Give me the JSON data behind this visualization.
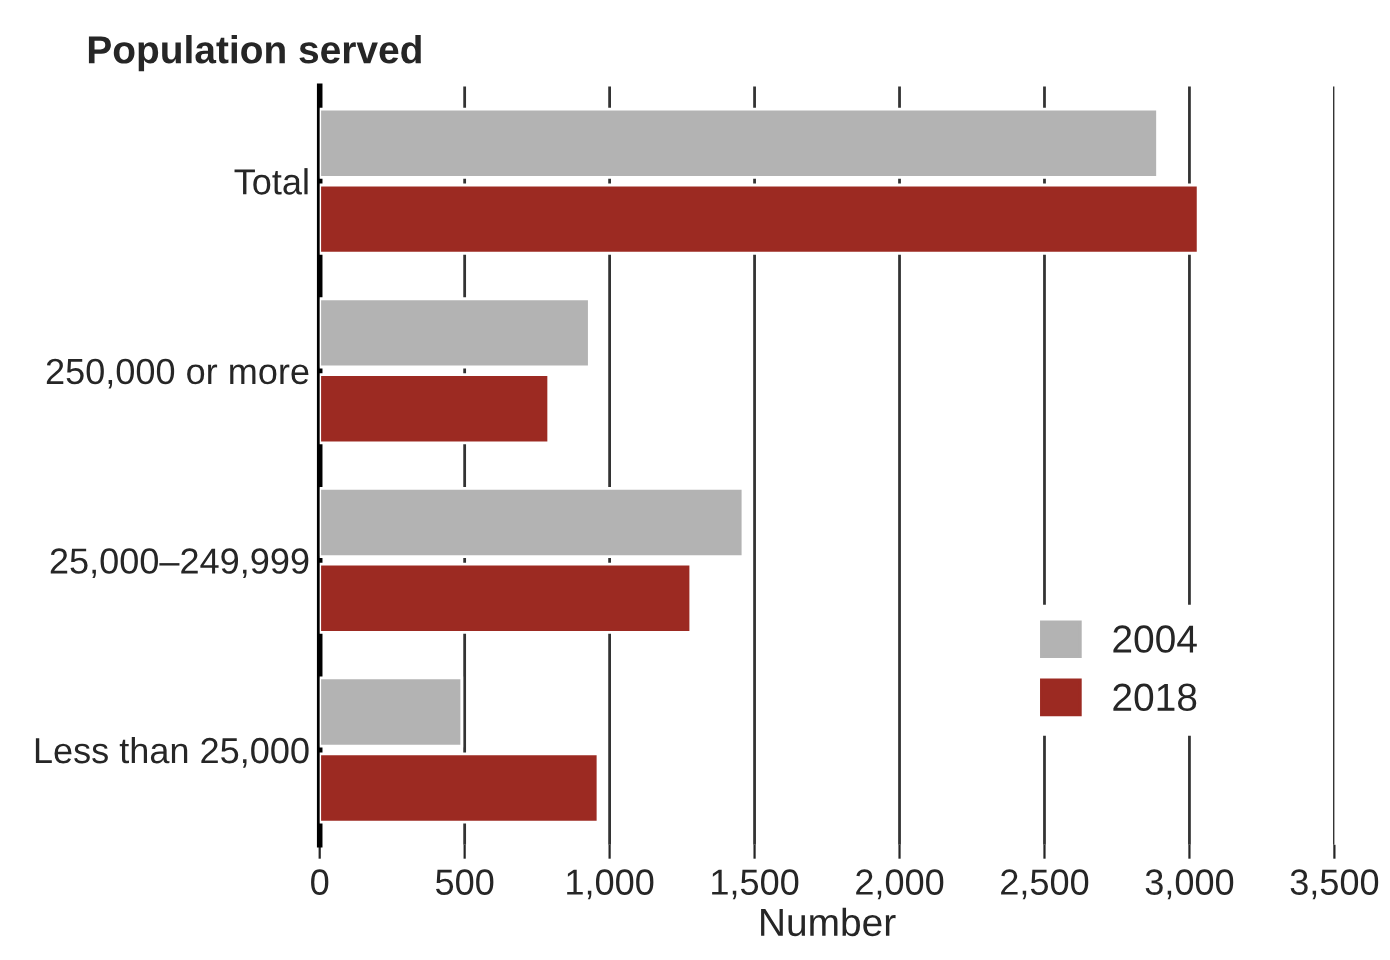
{
  "chart_data": {
    "type": "bar",
    "orientation": "horizontal",
    "ylabel": "Population served",
    "xlabel": "Number",
    "categories": [
      "Total",
      "250,000 or more",
      "25,000–249,999",
      "Less than 25,000"
    ],
    "series": [
      {
        "name": "2004",
        "color": "#b3b3b3",
        "values": [
          2890,
          930,
          1460,
          490
        ]
      },
      {
        "name": "2018",
        "color": "#9c2a22",
        "values": [
          3030,
          790,
          1280,
          960
        ]
      }
    ],
    "xlim": [
      0,
      3500
    ],
    "xticks": [
      0,
      500,
      {
        "value": 1000,
        "label": "1,000"
      },
      {
        "value": 1500,
        "label": "1,500"
      },
      {
        "value": 2000,
        "label": "2,000"
      },
      {
        "value": 2500,
        "label": "2,500"
      },
      {
        "value": 3000,
        "label": "3,000"
      },
      {
        "value": 3500,
        "label": "3,500"
      }
    ],
    "grid": "x",
    "legend": "lower right"
  }
}
